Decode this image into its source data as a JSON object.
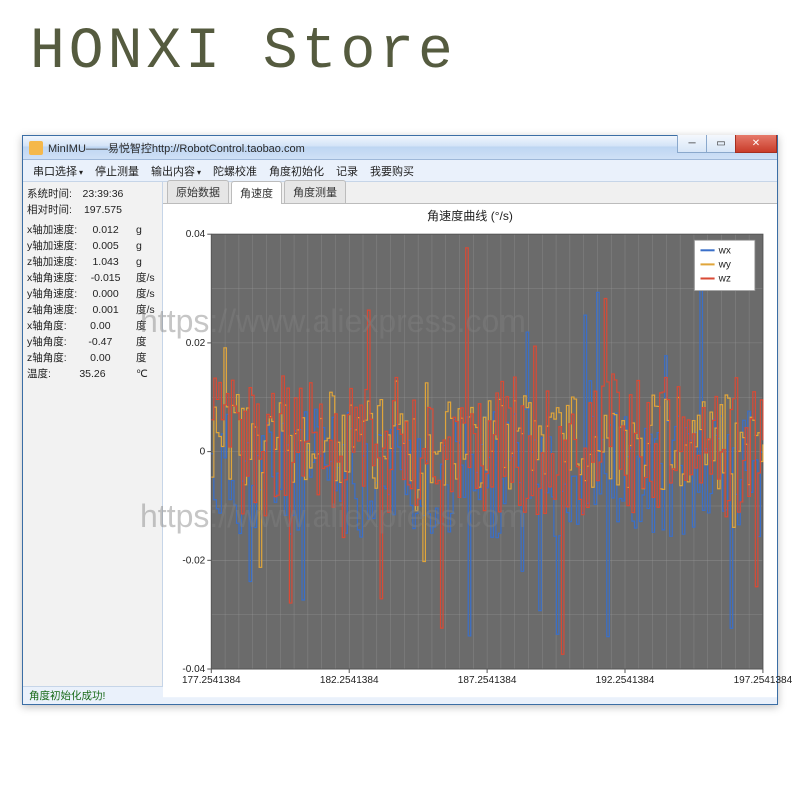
{
  "watermark_store": "HONXI Store",
  "watermark_url": "https://www.aliexpress.com",
  "window": {
    "title": "MinIMU——易悦智控http://RobotControl.taobao.com",
    "menu": [
      "串口选择",
      "停止测量",
      "输出内容",
      "陀螺校准",
      "角度初始化",
      "记录",
      "我要购买"
    ],
    "menu_has_arrow": [
      true,
      false,
      true,
      false,
      false,
      false,
      false
    ],
    "status": "角度初始化成功!"
  },
  "sidebar": {
    "system_time": {
      "label": "系统时间:",
      "value": "23:39:36",
      "unit": ""
    },
    "run_time": {
      "label": "相对时间:",
      "value": "197.575",
      "unit": ""
    },
    "rows": [
      {
        "label": "x轴加速度:",
        "value": "0.012",
        "unit": "g"
      },
      {
        "label": "y轴加速度:",
        "value": "0.005",
        "unit": "g"
      },
      {
        "label": "z轴加速度:",
        "value": "1.043",
        "unit": "g"
      },
      {
        "label": "x轴角速度:",
        "value": "-0.015",
        "unit": "度/s"
      },
      {
        "label": "y轴角速度:",
        "value": "0.000",
        "unit": "度/s"
      },
      {
        "label": "z轴角速度:",
        "value": "0.001",
        "unit": "度/s"
      },
      {
        "label": "x轴角度:",
        "value": "0.00",
        "unit": "度"
      },
      {
        "label": "y轴角度:",
        "value": "-0.47",
        "unit": "度"
      },
      {
        "label": "z轴角度:",
        "value": "0.00",
        "unit": "度"
      },
      {
        "label": "温度:",
        "value": "35.26",
        "unit": "℃"
      }
    ]
  },
  "tabs": {
    "items": [
      "原始数据",
      "角速度",
      "角度测量"
    ],
    "active_index": 1
  },
  "chart": {
    "title": "角速度曲线 (°/s)",
    "title_fontsize": 12,
    "title_color": "#222222",
    "bg_color": "#ffffff",
    "plot_bg_color": "#6b6b6b",
    "grid_color": "#999999",
    "axis_color": "#555555",
    "label_fontsize": 10,
    "tick_fontsize": 10,
    "xlim": [
      177.2541384,
      197.2541384
    ],
    "ylim": [
      -0.04,
      0.04
    ],
    "xticks": [
      177.2541384,
      182.2541384,
      187.2541384,
      192.2541384,
      197.2541384
    ],
    "xtick_labels": [
      "177.2541384",
      "182.2541384",
      "187.2541384",
      "192.2541384",
      "197.2541384"
    ],
    "yticks": [
      -0.04,
      -0.02,
      0,
      0.02,
      0.04
    ],
    "ytick_labels": [
      "-0.04",
      "-0.02",
      "0",
      "0.02",
      "0.04"
    ],
    "x_minor_grid_count": 40,
    "y_minor_grid_count": 8,
    "legend": {
      "position": "top-right-inside",
      "items": [
        "wx",
        "wy",
        "wz"
      ],
      "box_border": "#999999",
      "box_bg": "#ffffff"
    },
    "series": [
      {
        "name": "wx",
        "color": "#3a6fc9",
        "line_width": 1.2,
        "step": true,
        "noise_amp": 0.012,
        "noise_center": -0.004,
        "spike_amp": 0.032,
        "seed": 11
      },
      {
        "name": "wy",
        "color": "#e0a53a",
        "line_width": 1.2,
        "step": true,
        "noise_amp": 0.009,
        "noise_center": 0.002,
        "spike_amp": 0.022,
        "seed": 23
      },
      {
        "name": "wz",
        "color": "#d94a35",
        "line_width": 1.2,
        "step": true,
        "noise_amp": 0.013,
        "noise_center": 0.001,
        "spike_amp": 0.034,
        "seed": 37
      }
    ]
  }
}
